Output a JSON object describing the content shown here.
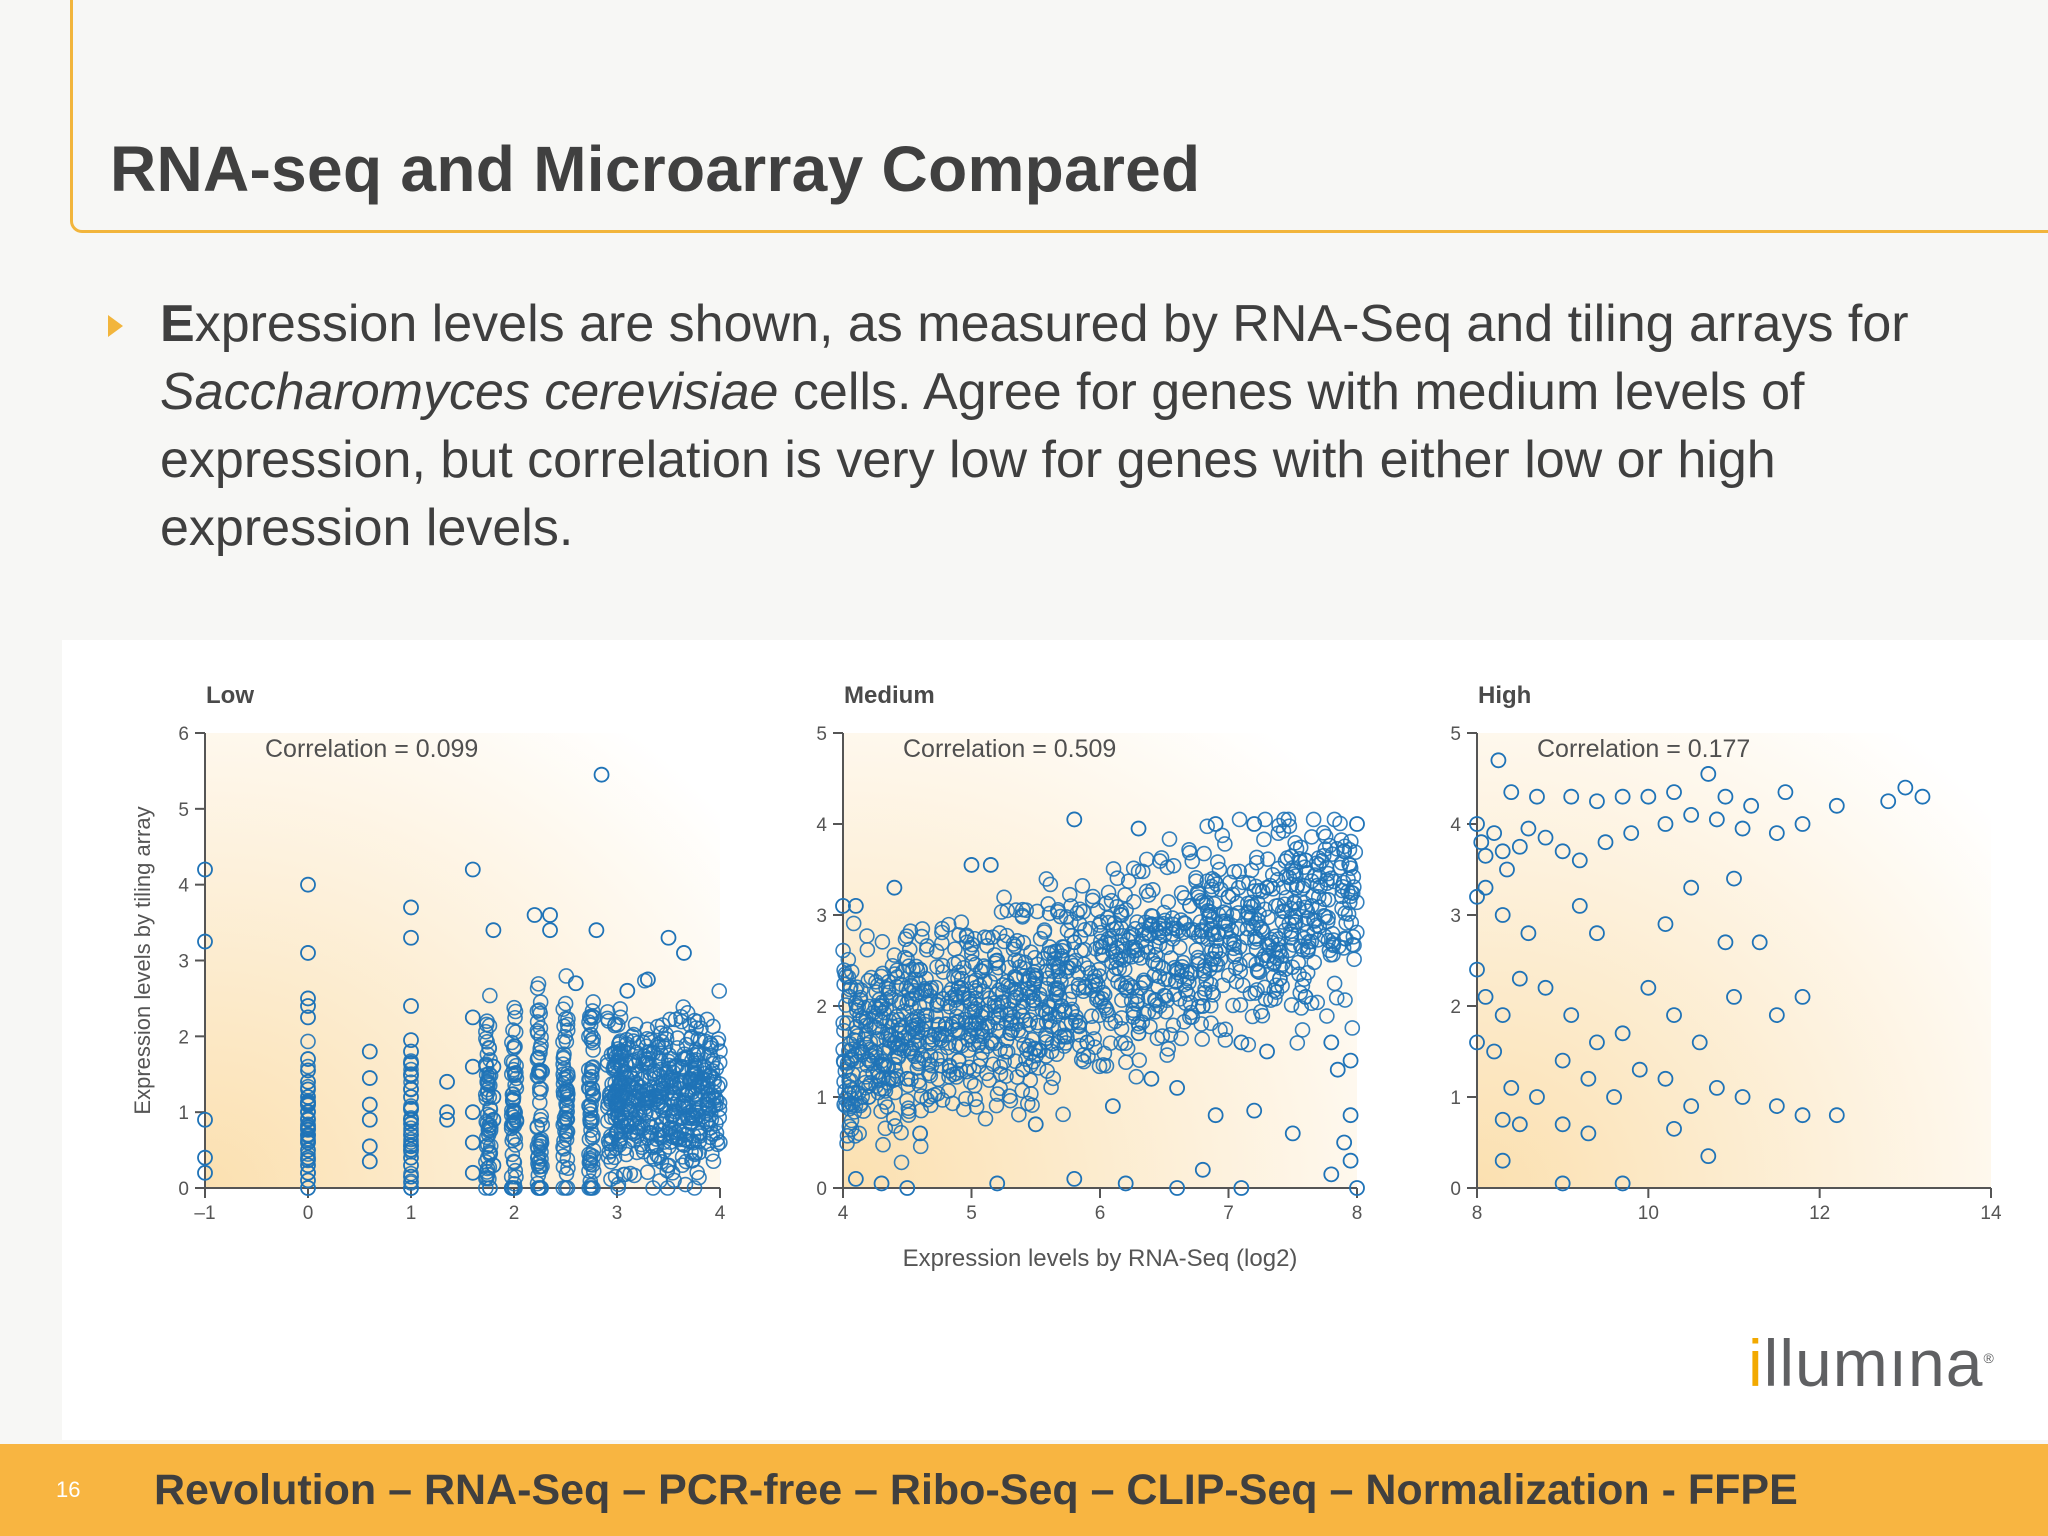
{
  "slide": {
    "title": "RNA-seq and Microarray Compared",
    "bullet": {
      "lead": "E",
      "part1": "xpression levels are shown, as measured by RNA-Seq and tiling arrays for ",
      "italic": "Saccharomyces cerevisiae",
      "part2": " cells. Agree for genes with medium levels of expression, but correlation is very low for genes with either low or high expression levels."
    },
    "logo": {
      "first": "i",
      "mid": "ll",
      "rest": "umına",
      "mark": "®"
    },
    "page_number": "16",
    "footer": "Revolution – RNA-Seq – PCR-free – Ribo-Seq – CLIP-Seq – Normalization - FFPE"
  },
  "colors": {
    "accent": "#f8b541",
    "marker": "#1f73b7",
    "text": "#3f3f3f"
  },
  "chart_data": [
    {
      "type": "scatter",
      "title": "Low",
      "annotation": "Correlation = 0.099",
      "ylabel": "Expression levels by tiling array",
      "xlabel": "",
      "xlim": [
        -1,
        4
      ],
      "ylim": [
        0,
        6
      ],
      "xticks": [
        -1,
        0,
        1,
        2,
        3,
        4
      ],
      "yticks": [
        0,
        1,
        2,
        3,
        4,
        5,
        6
      ],
      "xtick_labels": [
        "–1",
        "0",
        "1",
        "2",
        "3",
        "4"
      ],
      "ytick_labels": [
        "0",
        "1",
        "2",
        "3",
        "4",
        "5",
        "6"
      ],
      "marker": "open-circle",
      "points": [
        [
          -1,
          4.2
        ],
        [
          -1,
          3.25
        ],
        [
          -1,
          0.9
        ],
        [
          -1,
          0.4
        ],
        [
          -1,
          0.2
        ],
        [
          0,
          4.0
        ],
        [
          0,
          3.1
        ],
        [
          0,
          2.5
        ],
        [
          0,
          2.4
        ],
        [
          0,
          2.25
        ],
        [
          0,
          1.7
        ],
        [
          0,
          1.55
        ],
        [
          0,
          1.4
        ],
        [
          0,
          1.3
        ],
        [
          0,
          1.2
        ],
        [
          0,
          1.1
        ],
        [
          0,
          1.0
        ],
        [
          0,
          0.9
        ],
        [
          0,
          0.8
        ],
        [
          0,
          0.7
        ],
        [
          0,
          0.6
        ],
        [
          0,
          0.5
        ],
        [
          0,
          0.4
        ],
        [
          0,
          0.3
        ],
        [
          0,
          0.2
        ],
        [
          0,
          0.1
        ],
        [
          0,
          0.0
        ],
        [
          0.6,
          1.8
        ],
        [
          0.6,
          1.45
        ],
        [
          0.6,
          1.1
        ],
        [
          0.6,
          0.9
        ],
        [
          0.6,
          0.55
        ],
        [
          0.6,
          0.35
        ],
        [
          1,
          3.7
        ],
        [
          1,
          3.3
        ],
        [
          1,
          2.4
        ],
        [
          1,
          1.95
        ],
        [
          1,
          1.8
        ],
        [
          1,
          1.65
        ],
        [
          1,
          1.5
        ],
        [
          1,
          1.3
        ],
        [
          1,
          1.2
        ],
        [
          1,
          1.05
        ],
        [
          1,
          0.9
        ],
        [
          1,
          0.7
        ],
        [
          1,
          0.55
        ],
        [
          1,
          0.4
        ],
        [
          1,
          0.3
        ],
        [
          1,
          0.15
        ],
        [
          1,
          0.0
        ],
        [
          1.35,
          1.4
        ],
        [
          1.35,
          1.0
        ],
        [
          1.35,
          0.9
        ],
        [
          1.6,
          4.2
        ],
        [
          1.6,
          2.25
        ],
        [
          1.6,
          1.6
        ],
        [
          1.6,
          1.0
        ],
        [
          1.6,
          0.6
        ],
        [
          1.6,
          0.2
        ],
        [
          1.8,
          3.4
        ],
        [
          1.8,
          1.6
        ],
        [
          1.8,
          1.2
        ],
        [
          1.8,
          0.9
        ],
        [
          1.8,
          0.3
        ],
        [
          2.2,
          3.6
        ],
        [
          2.35,
          3.6
        ],
        [
          2.35,
          3.4
        ],
        [
          2.8,
          3.4
        ],
        [
          2.85,
          5.45
        ],
        [
          3.5,
          3.3
        ],
        [
          3.65,
          3.1
        ],
        [
          3.3,
          2.75
        ],
        [
          2.6,
          2.7
        ],
        [
          3.1,
          2.6
        ]
      ]
    },
    {
      "type": "scatter",
      "title": "Medium",
      "annotation": "Correlation = 0.509",
      "ylabel": "",
      "xlabel": "Expression levels by RNA-Seq (log2)",
      "xlim": [
        4,
        8
      ],
      "ylim": [
        0,
        5
      ],
      "xticks": [
        4,
        5,
        6,
        7,
        8
      ],
      "yticks": [
        0,
        1,
        2,
        3,
        4,
        5
      ],
      "xtick_labels": [
        "4",
        "5",
        "6",
        "7",
        "8"
      ],
      "ytick_labels": [
        "0",
        "1",
        "2",
        "3",
        "4",
        "5"
      ],
      "marker": "open-circle",
      "points": [
        [
          4.0,
          3.1
        ],
        [
          4.1,
          3.1
        ],
        [
          4.4,
          3.3
        ],
        [
          5.0,
          3.55
        ],
        [
          5.15,
          3.55
        ],
        [
          5.8,
          4.05
        ],
        [
          6.3,
          3.95
        ],
        [
          6.9,
          4.0
        ],
        [
          7.2,
          4.0
        ],
        [
          8.0,
          4.0
        ],
        [
          4.1,
          0.1
        ],
        [
          4.3,
          0.05
        ],
        [
          4.5,
          0.0
        ],
        [
          5.2,
          0.05
        ],
        [
          5.8,
          0.1
        ],
        [
          6.2,
          0.05
        ],
        [
          6.6,
          0.0
        ],
        [
          6.8,
          0.2
        ],
        [
          7.1,
          0.0
        ],
        [
          7.8,
          0.15
        ],
        [
          7.95,
          0.3
        ],
        [
          8.0,
          0.0
        ],
        [
          4.2,
          1.0
        ],
        [
          4.6,
          0.6
        ],
        [
          5.5,
          0.7
        ],
        [
          6.1,
          0.9
        ],
        [
          6.4,
          1.2
        ],
        [
          6.6,
          1.1
        ],
        [
          6.9,
          0.8
        ],
        [
          7.2,
          0.85
        ],
        [
          7.5,
          0.6
        ],
        [
          7.9,
          0.5
        ],
        [
          7.95,
          0.8
        ],
        [
          7.4,
          2.3
        ],
        [
          7.6,
          2.1
        ],
        [
          7.8,
          1.6
        ],
        [
          7.85,
          1.3
        ],
        [
          7.95,
          1.4
        ],
        [
          7.3,
          1.5
        ],
        [
          7.1,
          1.6
        ],
        [
          4.3,
          2.0
        ],
        [
          4.6,
          2.4
        ],
        [
          4.9,
          2.2
        ],
        [
          5.2,
          2.5
        ],
        [
          5.5,
          2.3
        ],
        [
          5.8,
          2.7
        ],
        [
          6.1,
          2.6
        ],
        [
          6.4,
          2.9
        ],
        [
          6.7,
          3.1
        ],
        [
          7.0,
          3.2
        ],
        [
          7.3,
          3.3
        ],
        [
          7.6,
          3.6
        ],
        [
          7.9,
          3.7
        ],
        [
          4.4,
          1.6
        ],
        [
          4.8,
          1.8
        ],
        [
          5.3,
          1.7
        ],
        [
          5.7,
          2.0
        ],
        [
          6.2,
          2.2
        ],
        [
          6.6,
          2.4
        ],
        [
          6.9,
          2.6
        ],
        [
          4.5,
          1.2
        ],
        [
          4.9,
          1.4
        ],
        [
          5.4,
          1.3
        ],
        [
          5.9,
          1.6
        ],
        [
          6.3,
          1.7
        ],
        [
          6.8,
          2.0
        ]
      ]
    },
    {
      "type": "scatter",
      "title": "High",
      "annotation": "Correlation = 0.177",
      "ylabel": "",
      "xlabel": "",
      "xlim": [
        8,
        14
      ],
      "ylim": [
        0,
        5
      ],
      "xticks": [
        8,
        10,
        12,
        14
      ],
      "yticks": [
        0,
        1,
        2,
        3,
        4,
        5
      ],
      "xtick_labels": [
        "8",
        "10",
        "12",
        "14"
      ],
      "ytick_labels": [
        "0",
        "1",
        "2",
        "3",
        "4",
        "5"
      ],
      "marker": "open-circle",
      "points": [
        [
          8.25,
          4.7
        ],
        [
          8.4,
          4.35
        ],
        [
          8.7,
          4.3
        ],
        [
          9.1,
          4.3
        ],
        [
          9.4,
          4.25
        ],
        [
          9.7,
          4.3
        ],
        [
          10.0,
          4.3
        ],
        [
          10.3,
          4.35
        ],
        [
          10.7,
          4.55
        ],
        [
          10.9,
          4.3
        ],
        [
          11.2,
          4.2
        ],
        [
          11.6,
          4.35
        ],
        [
          12.2,
          4.2
        ],
        [
          12.8,
          4.25
        ],
        [
          13.0,
          4.4
        ],
        [
          13.2,
          4.3
        ],
        [
          8.0,
          4.0
        ],
        [
          8.05,
          3.8
        ],
        [
          8.1,
          3.65
        ],
        [
          8.2,
          3.9
        ],
        [
          8.3,
          3.7
        ],
        [
          8.35,
          3.5
        ],
        [
          8.5,
          3.75
        ],
        [
          8.6,
          3.95
        ],
        [
          8.8,
          3.85
        ],
        [
          9.0,
          3.7
        ],
        [
          9.2,
          3.6
        ],
        [
          9.5,
          3.8
        ],
        [
          9.8,
          3.9
        ],
        [
          10.2,
          4.0
        ],
        [
          10.5,
          4.1
        ],
        [
          10.8,
          4.05
        ],
        [
          11.1,
          3.95
        ],
        [
          11.5,
          3.9
        ],
        [
          11.8,
          4.0
        ],
        [
          8.0,
          3.2
        ],
        [
          8.1,
          3.3
        ],
        [
          8.3,
          3.0
        ],
        [
          8.6,
          2.8
        ],
        [
          9.2,
          3.1
        ],
        [
          9.4,
          2.8
        ],
        [
          10.2,
          2.9
        ],
        [
          10.5,
          3.3
        ],
        [
          10.9,
          2.7
        ],
        [
          11.0,
          3.4
        ],
        [
          11.3,
          2.7
        ],
        [
          8.0,
          2.4
        ],
        [
          8.1,
          2.1
        ],
        [
          8.3,
          1.9
        ],
        [
          8.5,
          2.3
        ],
        [
          8.8,
          2.2
        ],
        [
          9.1,
          1.9
        ],
        [
          9.4,
          1.6
        ],
        [
          9.7,
          1.7
        ],
        [
          10.0,
          2.2
        ],
        [
          10.3,
          1.9
        ],
        [
          10.6,
          1.6
        ],
        [
          11.0,
          2.1
        ],
        [
          11.5,
          1.9
        ],
        [
          11.8,
          2.1
        ],
        [
          8.0,
          1.6
        ],
        [
          8.2,
          1.5
        ],
        [
          8.4,
          1.1
        ],
        [
          8.7,
          1.0
        ],
        [
          9.0,
          1.4
        ],
        [
          9.3,
          1.2
        ],
        [
          9.6,
          1.0
        ],
        [
          9.9,
          1.3
        ],
        [
          10.2,
          1.2
        ],
        [
          10.5,
          0.9
        ],
        [
          10.8,
          1.1
        ],
        [
          11.1,
          1.0
        ],
        [
          11.5,
          0.9
        ],
        [
          11.8,
          0.8
        ],
        [
          12.2,
          0.8
        ],
        [
          8.3,
          0.75
        ],
        [
          8.5,
          0.7
        ],
        [
          9.0,
          0.7
        ],
        [
          9.3,
          0.6
        ],
        [
          8.3,
          0.3
        ],
        [
          9.0,
          0.05
        ],
        [
          9.7,
          0.05
        ],
        [
          10.7,
          0.35
        ],
        [
          10.3,
          0.65
        ]
      ]
    }
  ]
}
